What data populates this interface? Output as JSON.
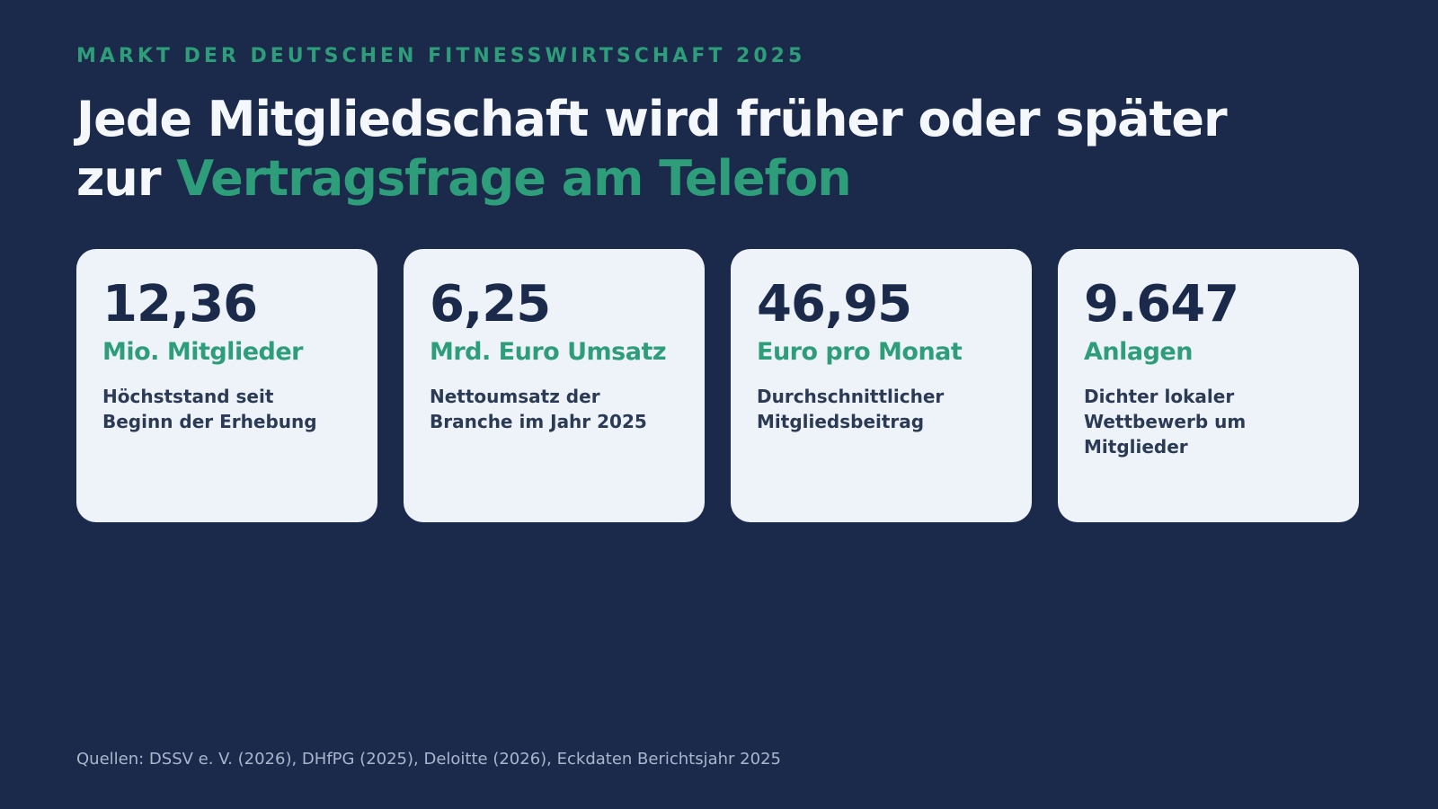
{
  "header": {
    "eyebrow": "MARKT DER DEUTSCHEN FITNESSWIRTSCHAFT 2025",
    "headline_line1": "Jede Mitgliedschaft wird früher oder später",
    "headline_line2_prefix": "zur ",
    "headline_line2_accent": "Vertragsfrage am Telefon"
  },
  "cards": [
    {
      "value": "12,36",
      "unit": "Mio. Mitglieder",
      "description": "Höchststand seit Beginn der Erhebung"
    },
    {
      "value": "6,25",
      "unit": "Mrd. Euro Umsatz",
      "description": "Nettoumsatz der Branche im Jahr 2025"
    },
    {
      "value": "46,95",
      "unit": "Euro pro Monat",
      "description": "Durchschnittlicher Mitgliedsbeitrag"
    },
    {
      "value": "9.647",
      "unit": "Anlagen",
      "description": "Dichter lokaler Wettbewerb um Mitglieder"
    }
  ],
  "footer": {
    "sources": "Quellen: DSSV e. V. (2026), DHfPG (2025), Deloitte (2026), Eckdaten Berichtsjahr 2025"
  },
  "colors": {
    "background": "#1b2a4a",
    "accent": "#2e9d7a",
    "card_background": "#eef3f9",
    "text_light": "#f4f7fb"
  }
}
